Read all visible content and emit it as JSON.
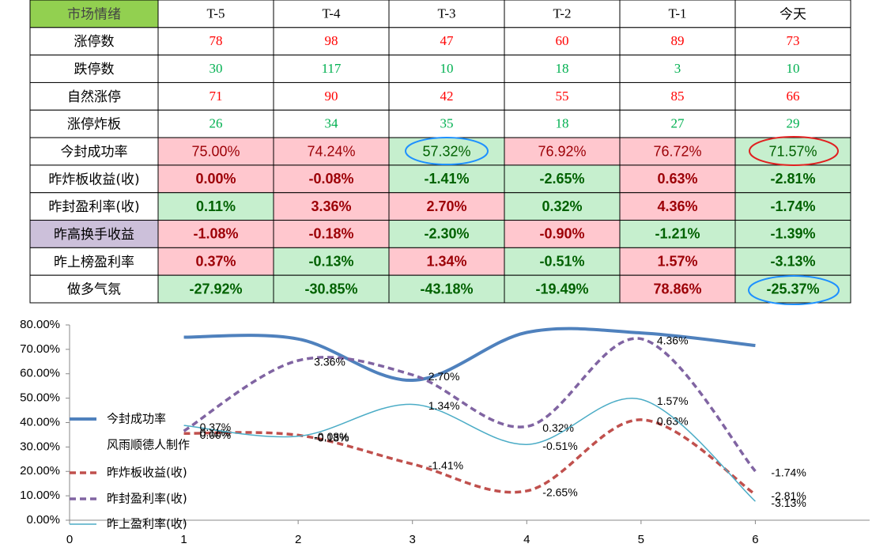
{
  "watermark": "风雨顺德人",
  "table": {
    "header": [
      "市场情绪",
      "T-5",
      "T-4",
      "T-3",
      "T-2",
      "T-1",
      "今天"
    ],
    "header_fill": "#92d050",
    "rows": [
      {
        "label": "涨停数",
        "values": [
          78,
          98,
          47,
          60,
          89,
          73
        ],
        "color": "#ff0000"
      },
      {
        "label": "跌停数",
        "values": [
          30,
          117,
          10,
          18,
          3,
          10
        ],
        "color": "#00b050"
      },
      {
        "label": "自然涨停",
        "values": [
          71,
          90,
          42,
          55,
          85,
          66
        ],
        "color": "#ff0000"
      },
      {
        "label": "涨停炸板",
        "values": [
          26,
          34,
          35,
          18,
          27,
          29
        ],
        "color": "#00b050"
      },
      {
        "label": "今封成功率",
        "values": [
          "75.00%",
          "74.24%",
          "57.32%",
          "76.92%",
          "76.72%",
          "71.57%"
        ],
        "fills": [
          "#ffc7ce",
          "#ffc7ce",
          "#c6efce",
          "#ffc7ce",
          "#ffc7ce",
          "#c6efce"
        ],
        "bold": false
      },
      {
        "label": "昨炸板收益(收)",
        "values": [
          "0.00%",
          "-0.08%",
          "-1.41%",
          "-2.65%",
          "0.63%",
          "-2.81%"
        ],
        "fills": [
          "#ffc7ce",
          "#ffc7ce",
          "#c6efce",
          "#c6efce",
          "#ffc7ce",
          "#c6efce"
        ],
        "bold": true
      },
      {
        "label": "昨封盈利率(收)",
        "values": [
          "0.11%",
          "3.36%",
          "2.70%",
          "0.32%",
          "4.36%",
          "-1.74%"
        ],
        "fills": [
          "#c6efce",
          "#ffc7ce",
          "#ffc7ce",
          "#c6efce",
          "#ffc7ce",
          "#c6efce"
        ],
        "bold": true
      },
      {
        "label": "昨高换手收益",
        "values": [
          "-1.08%",
          "-0.18%",
          "-2.30%",
          "-0.90%",
          "-1.21%",
          "-1.39%"
        ],
        "fills": [
          "#ffc7ce",
          "#ffc7ce",
          "#c6efce",
          "#ffc7ce",
          "#c6efce",
          "#c6efce"
        ],
        "bold": true,
        "label_fill": "#ccc0da"
      },
      {
        "label": "昨上榜盈利率",
        "values": [
          "0.37%",
          "-0.13%",
          "1.34%",
          "-0.51%",
          "1.57%",
          "-3.13%"
        ],
        "fills": [
          "#ffc7ce",
          "#c6efce",
          "#ffc7ce",
          "#c6efce",
          "#ffc7ce",
          "#c6efce"
        ],
        "bold": true
      },
      {
        "label": "做多气氛",
        "values": [
          "-27.92%",
          "-30.85%",
          "-43.18%",
          "-19.49%",
          "78.86%",
          "-25.37%"
        ],
        "fills": [
          "#c6efce",
          "#c6efce",
          "#c6efce",
          "#c6efce",
          "#ffc7ce",
          "#c6efce"
        ],
        "bold": true
      }
    ]
  },
  "chart_data": {
    "type": "line",
    "smooth": true,
    "x": [
      1,
      2,
      3,
      4,
      5,
      6
    ],
    "xlim": [
      0,
      7
    ],
    "xticks": [
      0,
      1,
      2,
      3,
      4,
      5,
      6
    ],
    "ylim": [
      0,
      80
    ],
    "yticks": [
      {
        "value": 0,
        "label": "0.00%"
      },
      {
        "value": 10,
        "label": "10.00%"
      },
      {
        "value": 20,
        "label": "20.00%"
      },
      {
        "value": 30,
        "label": "30.00%"
      },
      {
        "value": 40,
        "label": "40.00%"
      },
      {
        "value": 50,
        "label": "50.00%"
      },
      {
        "value": 60,
        "label": "60.00%"
      },
      {
        "value": 70,
        "label": "70.00%"
      },
      {
        "value": 80,
        "label": "80.00%"
      }
    ],
    "y2lim": [
      -4,
      5
    ],
    "legend_note": "风雨顺德人制作",
    "series": [
      {
        "name": "今封成功率",
        "color": "#4f81bd",
        "line_width": 4,
        "dashed": false,
        "values": [
          75.0,
          74.24,
          57.32,
          76.92,
          76.72,
          71.57
        ]
      },
      {
        "name": "昨炸板收益(收)",
        "color": "#c0504d",
        "line_width": 3.5,
        "dashed": true,
        "axis": "y2",
        "values": [
          0.0,
          -0.08,
          -1.41,
          -2.65,
          0.63,
          -2.81
        ],
        "value_labels": [
          "0.00%",
          "-0.08%",
          "-1.41%",
          "-2.65%",
          "0.63%",
          "-2.81%"
        ]
      },
      {
        "name": "昨封盈利率(收)",
        "color": "#8064a2",
        "line_width": 3.5,
        "dashed": true,
        "axis": "y2",
        "values": [
          0.11,
          3.36,
          2.7,
          0.32,
          4.36,
          -1.74
        ],
        "value_labels": [
          "0.11%",
          "3.36%",
          "2.70%",
          "0.32%",
          "4.36%",
          "-1.74%"
        ]
      },
      {
        "name": "昨上盈利率(收)",
        "color": "#4bacc6",
        "line_width": 1.5,
        "dashed": false,
        "axis": "y2",
        "values": [
          0.37,
          -0.13,
          1.34,
          -0.51,
          1.57,
          -3.13
        ],
        "value_labels": [
          "0.37%",
          "-0.13%",
          "1.34%",
          "-0.51%",
          "1.57%",
          "-3.13%"
        ]
      }
    ]
  }
}
